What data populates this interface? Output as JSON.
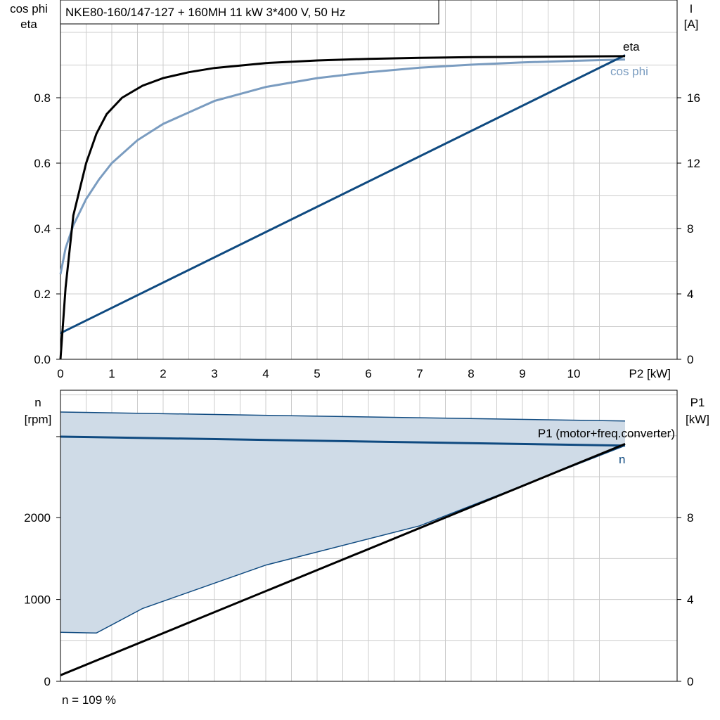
{
  "top_chart_title": "NKE80-160/147-127 + 160MH   11 kW   3*400 V, 50 Hz",
  "footer_text": "n = 109 %",
  "colors": {
    "grid": "#cccccc",
    "eta": "#000000",
    "cos_phi": "#7a9cc0",
    "current": "#0f4a80",
    "n_line": "#0f4a80",
    "p1_line": "#000000",
    "band_fill": "#cfdbe7"
  },
  "chart_data": [
    {
      "type": "line",
      "title": "NKE80-160/147-127 + 160MH   11 kW   3*400 V, 50 Hz",
      "xlabel": "P2 [kW]",
      "ylabel_left": [
        "cos phi",
        "eta"
      ],
      "ylabel_right": [
        "I",
        "[A]"
      ],
      "xlim": [
        0,
        11
      ],
      "ylim_left": [
        0,
        1.08
      ],
      "ylim_right": [
        0,
        21.6
      ],
      "x_ticks": [
        "0",
        "1",
        "2",
        "3",
        "4",
        "5",
        "6",
        "7",
        "8",
        "9",
        "10"
      ],
      "x_end_label": "P2 [kW]",
      "y_ticks_left": [
        "0.0",
        "0.2",
        "0.4",
        "0.6",
        "0.8"
      ],
      "y_ticks_right": [
        "0",
        "4",
        "8",
        "12",
        "16"
      ],
      "grid": true,
      "series": [
        {
          "name": "eta",
          "axis": "left",
          "x": [
            0,
            0.1,
            0.25,
            0.5,
            0.7,
            0.9,
            1.2,
            1.6,
            2,
            2.5,
            3,
            4,
            5,
            6,
            7,
            8,
            9,
            10,
            11
          ],
          "y": [
            0,
            0.22,
            0.44,
            0.6,
            0.69,
            0.75,
            0.8,
            0.837,
            0.86,
            0.878,
            0.891,
            0.906,
            0.914,
            0.919,
            0.922,
            0.924,
            0.925,
            0.926,
            0.927
          ]
        },
        {
          "name": "cos phi",
          "axis": "left",
          "x": [
            0,
            0.1,
            0.25,
            0.5,
            0.75,
            1,
            1.5,
            2,
            3,
            4,
            5,
            6,
            7,
            8,
            9,
            10,
            11
          ],
          "y": [
            0.26,
            0.34,
            0.41,
            0.49,
            0.55,
            0.6,
            0.67,
            0.72,
            0.79,
            0.833,
            0.86,
            0.878,
            0.892,
            0.901,
            0.908,
            0.913,
            0.917
          ]
        },
        {
          "name": "I",
          "axis": "right",
          "x": [
            0,
            11
          ],
          "y": [
            1.6,
            18.6
          ]
        }
      ]
    },
    {
      "type": "area",
      "xlabel": "",
      "ylabel_left": [
        "n",
        "[rpm]"
      ],
      "ylabel_right": [
        "P1",
        "[kW]"
      ],
      "xlim": [
        0,
        11
      ],
      "ylim_left": [
        0,
        3280
      ],
      "ylim_right": [
        0,
        13.12
      ],
      "y_ticks_left": [
        "0",
        "1000",
        "2000"
      ],
      "y_ticks_right": [
        "0",
        "4",
        "8"
      ],
      "grid": true,
      "series": [
        {
          "name": "n",
          "axis": "left",
          "x": [
            0,
            11
          ],
          "y": [
            2990,
            2880
          ]
        },
        {
          "name": "P1 (motor+freq.converter)",
          "axis": "right",
          "x": [
            0,
            11
          ],
          "y": [
            0.3,
            11.6
          ]
        }
      ],
      "band": {
        "upper": {
          "x": [
            0,
            11
          ],
          "y": [
            3290,
            3180
          ]
        },
        "lower": {
          "x": [
            0,
            0.7,
            1.6,
            4,
            7,
            11
          ],
          "y": [
            600,
            590,
            890,
            1420,
            1900,
            2880
          ]
        }
      }
    }
  ],
  "annotations": {
    "eta": "eta",
    "cos_phi": "cos phi",
    "p1": "P1 (motor+freq.converter)",
    "n": "n"
  }
}
